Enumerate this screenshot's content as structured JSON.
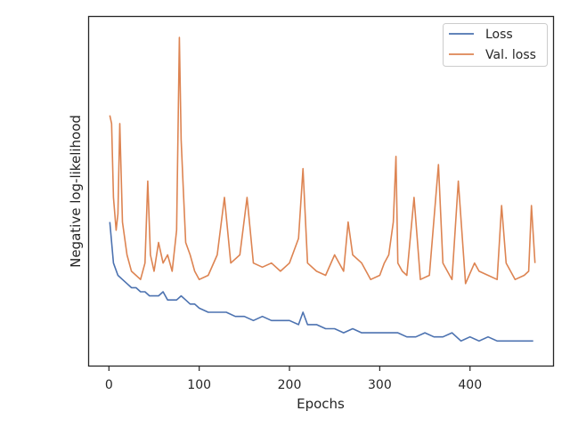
{
  "chart_data": {
    "type": "line",
    "xlabel": "Epochs",
    "ylabel": "Negative log-likelihood",
    "xlim": [
      -22,
      492
    ],
    "xticks": [
      0,
      100,
      200,
      300,
      400
    ],
    "y_tick_labels": "none",
    "grid": false,
    "legend_position": "top-right",
    "series": [
      {
        "name": "Loss",
        "color": "#4c72b0",
        "x": [
          1,
          5,
          10,
          15,
          20,
          25,
          30,
          35,
          40,
          45,
          50,
          55,
          60,
          65,
          70,
          75,
          80,
          85,
          90,
          95,
          100,
          110,
          120,
          130,
          140,
          150,
          160,
          170,
          180,
          190,
          200,
          210,
          215,
          220,
          230,
          240,
          250,
          260,
          270,
          280,
          290,
          300,
          310,
          320,
          330,
          340,
          350,
          360,
          370,
          380,
          390,
          400,
          410,
          420,
          430,
          440,
          450,
          460,
          470
        ],
        "y": [
          0.6,
          0.5,
          0.47,
          0.46,
          0.45,
          0.44,
          0.44,
          0.43,
          0.43,
          0.42,
          0.42,
          0.42,
          0.43,
          0.41,
          0.41,
          0.41,
          0.42,
          0.41,
          0.4,
          0.4,
          0.39,
          0.38,
          0.38,
          0.38,
          0.37,
          0.37,
          0.36,
          0.37,
          0.36,
          0.36,
          0.36,
          0.35,
          0.38,
          0.35,
          0.35,
          0.34,
          0.34,
          0.33,
          0.34,
          0.33,
          0.33,
          0.33,
          0.33,
          0.33,
          0.32,
          0.32,
          0.33,
          0.32,
          0.32,
          0.33,
          0.31,
          0.32,
          0.31,
          0.32,
          0.31,
          0.31,
          0.31,
          0.31,
          0.31
        ]
      },
      {
        "name": "Val. loss",
        "color": "#dd8452",
        "x": [
          1,
          3,
          5,
          8,
          10,
          12,
          15,
          20,
          25,
          30,
          35,
          40,
          43,
          46,
          50,
          55,
          60,
          65,
          70,
          75,
          78,
          80,
          82,
          85,
          90,
          95,
          100,
          110,
          120,
          128,
          135,
          145,
          153,
          160,
          170,
          180,
          190,
          200,
          210,
          215,
          220,
          230,
          240,
          250,
          260,
          265,
          270,
          280,
          290,
          300,
          305,
          310,
          315,
          318,
          320,
          325,
          330,
          338,
          345,
          355,
          365,
          370,
          380,
          387,
          395,
          405,
          410,
          420,
          430,
          435,
          440,
          450,
          460,
          465,
          468,
          472
        ],
        "y": [
          0.86,
          0.84,
          0.66,
          0.58,
          0.62,
          0.84,
          0.6,
          0.52,
          0.48,
          0.47,
          0.46,
          0.5,
          0.7,
          0.52,
          0.48,
          0.55,
          0.5,
          0.52,
          0.48,
          0.58,
          1.05,
          0.8,
          0.7,
          0.55,
          0.52,
          0.48,
          0.46,
          0.47,
          0.52,
          0.66,
          0.5,
          0.52,
          0.66,
          0.5,
          0.49,
          0.5,
          0.48,
          0.5,
          0.56,
          0.73,
          0.5,
          0.48,
          0.47,
          0.52,
          0.48,
          0.6,
          0.52,
          0.5,
          0.46,
          0.47,
          0.5,
          0.52,
          0.6,
          0.76,
          0.5,
          0.48,
          0.47,
          0.66,
          0.46,
          0.47,
          0.74,
          0.5,
          0.46,
          0.7,
          0.45,
          0.5,
          0.48,
          0.47,
          0.46,
          0.64,
          0.5,
          0.46,
          0.47,
          0.48,
          0.64,
          0.5
        ]
      }
    ],
    "ylim": [
      0.25,
      1.1
    ]
  }
}
